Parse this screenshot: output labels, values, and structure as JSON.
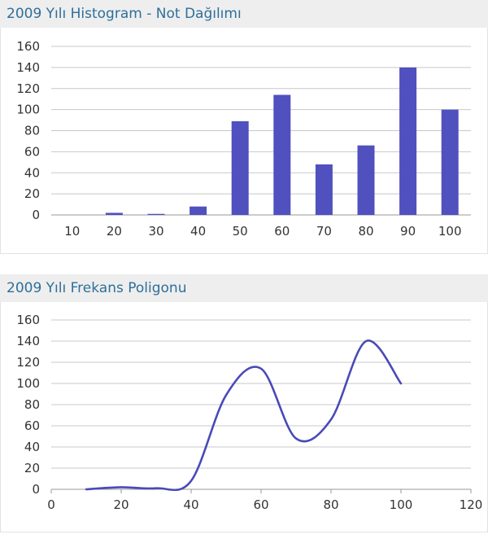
{
  "chart_data": [
    {
      "type": "bar",
      "title": "2009 Yılı Histogram - Not Dağılımı",
      "categories": [
        "10",
        "20",
        "30",
        "40",
        "50",
        "60",
        "70",
        "80",
        "90",
        "100"
      ],
      "values": [
        0,
        2,
        1,
        8,
        89,
        114,
        48,
        66,
        140,
        100
      ],
      "ylim": [
        0,
        160
      ],
      "yticks": [
        "0",
        "20",
        "40",
        "60",
        "80",
        "100",
        "120",
        "140",
        "160"
      ],
      "grid": true,
      "colors": {
        "bar": "#5050bf",
        "grid": "#c8c8c8",
        "axis": "#999999"
      }
    },
    {
      "type": "line",
      "title": "2009 Yılı Frekans Poligonu",
      "x": [
        10,
        20,
        30,
        40,
        50,
        60,
        70,
        80,
        90,
        100
      ],
      "y": [
        0,
        2,
        1,
        8,
        89,
        114,
        48,
        66,
        140,
        100
      ],
      "smooth": true,
      "xlim": [
        0,
        120
      ],
      "ylim": [
        0,
        160
      ],
      "xticks": [
        "0",
        "20",
        "40",
        "60",
        "80",
        "100",
        "120"
      ],
      "yticks": [
        "0",
        "20",
        "40",
        "60",
        "80",
        "100",
        "120",
        "140",
        "160"
      ],
      "grid": true,
      "colors": {
        "line": "#4a4ab8",
        "grid": "#c8c8c8",
        "axis": "#999999"
      }
    }
  ]
}
